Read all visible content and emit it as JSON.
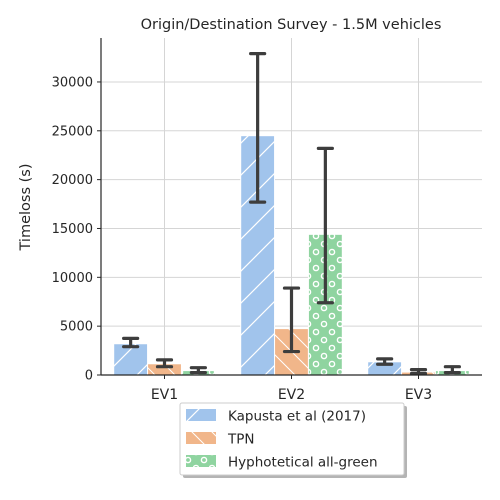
{
  "chart_data": {
    "type": "bar",
    "title": "Origin/Destination Survey - 1.5M vehicles",
    "xlabel": "",
    "ylabel": "Timeloss (s)",
    "ylim": [
      0,
      34500
    ],
    "yticks": [
      0,
      5000,
      10000,
      15000,
      20000,
      25000,
      30000
    ],
    "grid": true,
    "legend_position": "bottom-center",
    "categories": [
      "EV1",
      "EV2",
      "EV3"
    ],
    "series": [
      {
        "name": "Kapusta et al (2017)",
        "color": "#a1c4ec",
        "hatch": "diagonal",
        "values": [
          3200,
          24500,
          1350
        ],
        "error_low": [
          2900,
          17700,
          1100
        ],
        "error_high": [
          3750,
          32900,
          1650
        ]
      },
      {
        "name": "TPN",
        "color": "#f1b68a",
        "hatch": "backslash",
        "values": [
          1150,
          4750,
          300
        ],
        "error_low": [
          850,
          2400,
          150
        ],
        "error_high": [
          1550,
          8900,
          550
        ]
      },
      {
        "name": "Hyphotetical all-green",
        "color": "#8fd4a0",
        "hatch": "circles",
        "values": [
          450,
          14400,
          450
        ],
        "error_low": [
          250,
          7400,
          250
        ],
        "error_high": [
          750,
          23200,
          850
        ]
      }
    ]
  }
}
